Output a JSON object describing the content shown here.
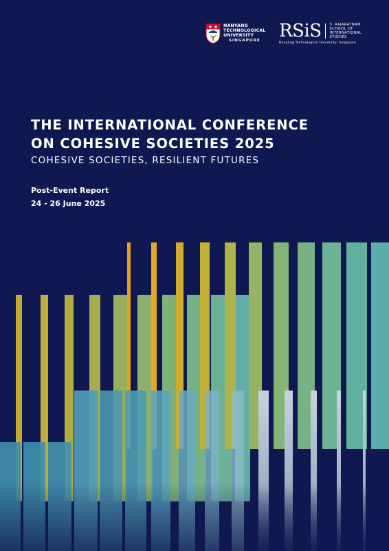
{
  "logos": {
    "ntu": {
      "line1": "NANYANG",
      "line2": "TECHNOLOGICAL",
      "line3": "UNIVERSITY",
      "line4": "SINGAPORE"
    },
    "rsis": {
      "mark": "RSiS",
      "school_line1": "S. RAJARATNAM",
      "school_line2": "SCHOOL OF",
      "school_line3": "INTERNATIONAL",
      "school_line4": "STUDIES",
      "tagline": "Nanyang Technological University, Singapore"
    }
  },
  "title": {
    "line1": "THE INTERNATIONAL CONFERENCE",
    "line2": "ON COHESIVE SOCIETIES 2025"
  },
  "subtitle": "COHESIVE SOCIETIES, RESILIENT FUTURES",
  "report": {
    "type": "Post-Event Report",
    "date": "24 - 26 June 2025"
  },
  "colors": {
    "background": "#0f1850",
    "gold": "#c9ae2c",
    "orange": "#e6a21c",
    "green": "#8fb06a",
    "teal": "#5fb0a0",
    "blue_teal": "#4f9fb0",
    "silver": "#b8c4d4"
  }
}
